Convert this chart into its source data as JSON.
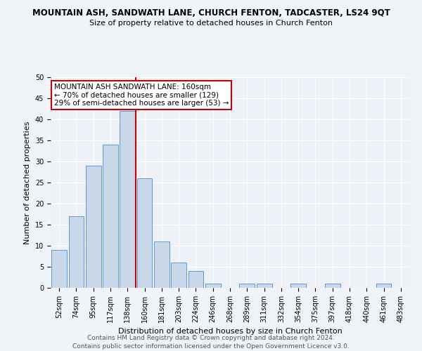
{
  "title": "MOUNTAIN ASH, SANDWATH LANE, CHURCH FENTON, TADCASTER, LS24 9QT",
  "subtitle": "Size of property relative to detached houses in Church Fenton",
  "xlabel": "Distribution of detached houses by size in Church Fenton",
  "ylabel": "Number of detached properties",
  "footer_line1": "Contains HM Land Registry data © Crown copyright and database right 2024.",
  "footer_line2": "Contains public sector information licensed under the Open Government Licence v3.0.",
  "categories": [
    "52sqm",
    "74sqm",
    "95sqm",
    "117sqm",
    "138sqm",
    "160sqm",
    "181sqm",
    "203sqm",
    "224sqm",
    "246sqm",
    "268sqm",
    "289sqm",
    "311sqm",
    "332sqm",
    "354sqm",
    "375sqm",
    "397sqm",
    "418sqm",
    "440sqm",
    "461sqm",
    "483sqm"
  ],
  "values": [
    9,
    17,
    29,
    34,
    42,
    26,
    11,
    6,
    4,
    1,
    0,
    1,
    1,
    0,
    1,
    0,
    1,
    0,
    0,
    1,
    0
  ],
  "bar_color": "#c8d8e8",
  "bar_edge_color": "#5b9bd5",
  "highlight_line1_text": "MOUNTAIN ASH SANDWATH LANE: 160sqm",
  "highlight_line2_text": "← 70% of detached houses are smaller (129)",
  "highlight_line3_text": "29% of semi-detached houses are larger (53) →",
  "ylim": [
    0,
    50
  ],
  "yticks": [
    0,
    5,
    10,
    15,
    20,
    25,
    30,
    35,
    40,
    45,
    50
  ],
  "annotation_box_facecolor": "#ffffff",
  "annotation_box_edgecolor": "#cc0000",
  "red_line_color": "#cc0000",
  "background_color": "#f0f4f8",
  "plot_bg_color": "#eef2f8",
  "grid_color": "#ffffff",
  "title_fontsize": 8.5,
  "subtitle_fontsize": 8.0,
  "tick_fontsize": 7.0,
  "ylabel_fontsize": 8.0,
  "xlabel_fontsize": 8.0,
  "annot_fontsize": 7.5,
  "footer_fontsize": 6.5
}
